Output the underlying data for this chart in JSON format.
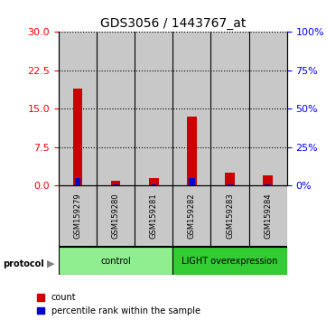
{
  "title": "GDS3056 / 1443767_at",
  "samples": [
    "GSM159279",
    "GSM159280",
    "GSM159281",
    "GSM159282",
    "GSM159283",
    "GSM159284"
  ],
  "count_values": [
    19.0,
    1.0,
    1.5,
    13.5,
    2.5,
    2.0
  ],
  "percentile_values": [
    5,
    1,
    1,
    5,
    1,
    1
  ],
  "left_yticks": [
    0,
    7.5,
    15,
    22.5,
    30
  ],
  "right_yticks": [
    0,
    25,
    50,
    75,
    100
  ],
  "left_ylim": [
    0,
    30
  ],
  "right_ylim": [
    0,
    100
  ],
  "groups": [
    {
      "label": "control",
      "indices": [
        0,
        1,
        2
      ],
      "color": "#90EE90"
    },
    {
      "label": "LIGHT overexpression",
      "indices": [
        3,
        4,
        5
      ],
      "color": "#33CC33"
    }
  ],
  "group_label": "protocol",
  "bar_color_red": "#CC0000",
  "bar_color_blue": "#0000CC",
  "legend_items": [
    "count",
    "percentile rank within the sample"
  ],
  "bg_color_samples": "#C8C8C8",
  "sample_fontsize": 6.0,
  "title_fontsize": 10
}
